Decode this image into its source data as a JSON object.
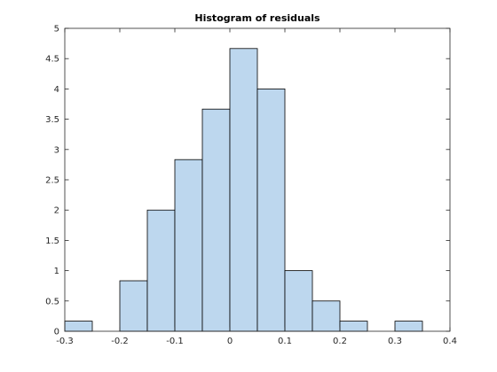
{
  "chart_data": {
    "type": "bar",
    "title": "Histogram of residuals",
    "xlabel": "",
    "ylabel": "",
    "bin_width": 0.05,
    "bins": [
      {
        "x0": -0.3,
        "x1": -0.25,
        "value": 0.1667
      },
      {
        "x0": -0.25,
        "x1": -0.2,
        "value": 0
      },
      {
        "x0": -0.2,
        "x1": -0.15,
        "value": 0.8333
      },
      {
        "x0": -0.15,
        "x1": -0.1,
        "value": 2.0
      },
      {
        "x0": -0.1,
        "x1": -0.05,
        "value": 2.8333
      },
      {
        "x0": -0.05,
        "x1": 0.0,
        "value": 3.6667
      },
      {
        "x0": 0.0,
        "x1": 0.05,
        "value": 4.6667
      },
      {
        "x0": 0.05,
        "x1": 0.1,
        "value": 4.0
      },
      {
        "x0": 0.1,
        "x1": 0.15,
        "value": 1.0
      },
      {
        "x0": 0.15,
        "x1": 0.2,
        "value": 0.5
      },
      {
        "x0": 0.2,
        "x1": 0.25,
        "value": 0.1667
      },
      {
        "x0": 0.25,
        "x1": 0.3,
        "value": 0
      },
      {
        "x0": 0.3,
        "x1": 0.35,
        "value": 0.1667
      }
    ],
    "xlim": [
      -0.3,
      0.4
    ],
    "ylim": [
      0,
      5
    ],
    "xticks": [
      -0.3,
      -0.2,
      -0.1,
      0,
      0.1,
      0.2,
      0.3,
      0.4
    ],
    "xtick_labels": [
      "-0.3",
      "-0.2",
      "-0.1",
      "0",
      "0.1",
      "0.2",
      "0.3",
      "0.4"
    ],
    "yticks": [
      0,
      0.5,
      1,
      1.5,
      2,
      2.5,
      3,
      3.5,
      4,
      4.5,
      5
    ],
    "ytick_labels": [
      "0",
      "0.5",
      "1",
      "1.5",
      "2",
      "2.5",
      "3",
      "3.5",
      "4",
      "4.5",
      "5"
    ],
    "grid": false,
    "colors": {
      "bar_fill": "#bdd7ee",
      "bar_edge": "#000000",
      "axes": "#262626"
    }
  }
}
